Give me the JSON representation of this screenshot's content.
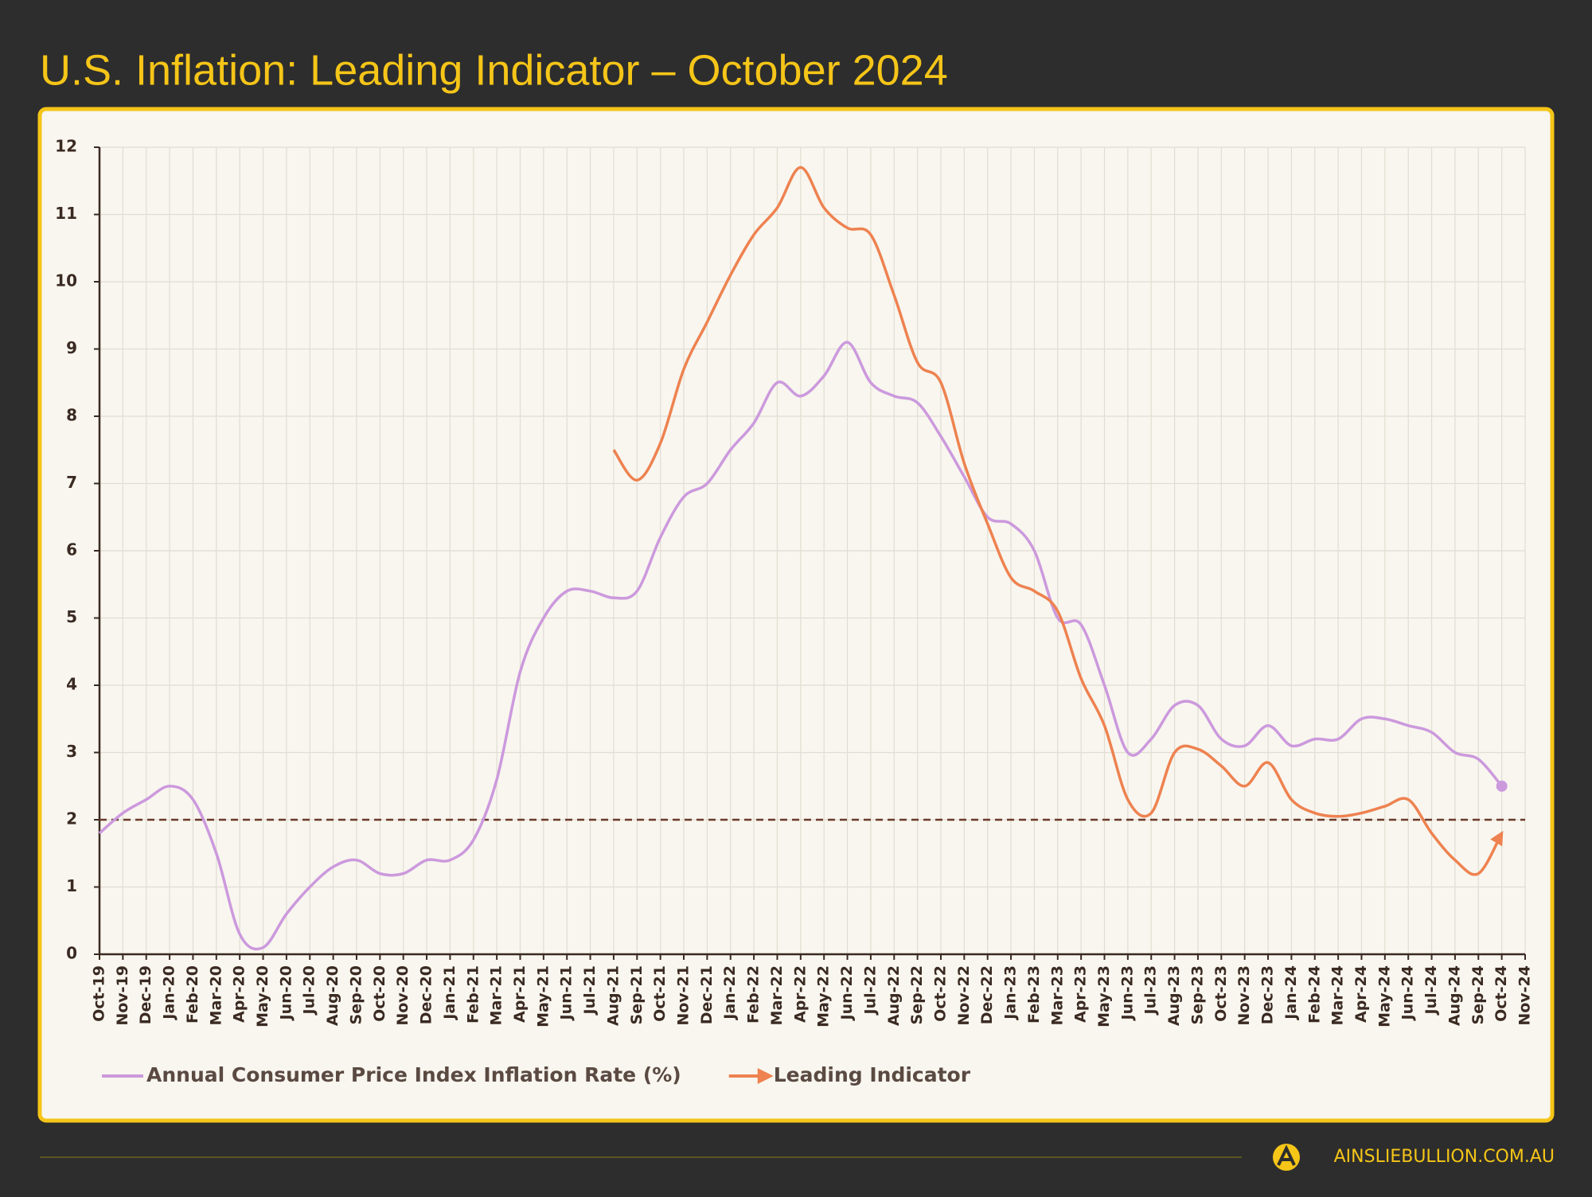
{
  "chart_data": {
    "type": "line",
    "title": "U.S. Inflation: Leading Indicator – October 2024",
    "categories": [
      "Oct-19",
      "Nov-19",
      "Dec-19",
      "Jan-20",
      "Feb-20",
      "Mar-20",
      "Apr-20",
      "May-20",
      "Jun-20",
      "Jul-20",
      "Aug-20",
      "Sep-20",
      "Oct-20",
      "Nov-20",
      "Dec-20",
      "Jan-21",
      "Feb-21",
      "Mar-21",
      "Apr-21",
      "May-21",
      "Jun-21",
      "Jul-21",
      "Aug-21",
      "Sep-21",
      "Oct-21",
      "Nov-21",
      "Dec-21",
      "Jan-22",
      "Feb-22",
      "Mar-22",
      "Apr-22",
      "May-22",
      "Jun-22",
      "Jul-22",
      "Aug-22",
      "Sep-22",
      "Oct-22",
      "Nov-22",
      "Dec-22",
      "Jan-23",
      "Feb-23",
      "Mar-23",
      "Apr-23",
      "May-23",
      "Jun-23",
      "Jul-23",
      "Aug-23",
      "Sep-23",
      "Oct-23",
      "Nov-23",
      "Dec-23",
      "Jan-24",
      "Feb-24",
      "Mar-24",
      "Apr-24",
      "May-24",
      "Jun-24",
      "Jul-24",
      "Aug-24",
      "Sep-24",
      "Oct-24",
      "Nov-24"
    ],
    "series": [
      {
        "name": "Annual Consumer Price Index Inflation Rate (%)",
        "color": "#cc99dd",
        "values": [
          1.8,
          2.1,
          2.3,
          2.5,
          2.3,
          1.5,
          0.3,
          0.1,
          0.6,
          1.0,
          1.3,
          1.4,
          1.2,
          1.2,
          1.4,
          1.4,
          1.7,
          2.6,
          4.2,
          5.0,
          5.4,
          5.4,
          5.3,
          5.4,
          6.2,
          6.8,
          7.0,
          7.5,
          7.9,
          8.5,
          8.3,
          8.6,
          9.1,
          8.5,
          8.3,
          8.2,
          7.7,
          7.1,
          6.5,
          6.4,
          6.0,
          5.0,
          4.9,
          4.0,
          3.0,
          3.2,
          3.7,
          3.7,
          3.2,
          3.1,
          3.4,
          3.1,
          3.2,
          3.2,
          3.5,
          3.5,
          3.4,
          3.3,
          3.0,
          2.9,
          2.5,
          null
        ]
      },
      {
        "name": "Leading Indicator",
        "color": "#ee8250",
        "values": [
          null,
          null,
          null,
          null,
          null,
          null,
          null,
          null,
          null,
          null,
          null,
          null,
          null,
          null,
          null,
          null,
          null,
          null,
          null,
          null,
          null,
          null,
          7.5,
          7.05,
          7.6,
          8.7,
          9.4,
          10.1,
          10.7,
          11.1,
          11.7,
          11.1,
          10.8,
          10.7,
          9.8,
          8.8,
          8.5,
          7.3,
          6.4,
          5.6,
          5.4,
          5.1,
          4.1,
          3.4,
          2.3,
          2.1,
          3.0,
          3.05,
          2.8,
          2.5,
          2.85,
          2.3,
          2.1,
          2.05,
          2.1,
          2.2,
          2.3,
          1.8,
          1.4,
          1.2,
          1.8,
          null
        ]
      }
    ],
    "ylim": [
      0,
      12
    ],
    "yticks": [
      0,
      1,
      2,
      3,
      4,
      5,
      6,
      7,
      8,
      9,
      10,
      11,
      12
    ],
    "reference_line": 2,
    "grid": true
  },
  "footer": {
    "site": "AINSLIEBULLION.COM.AU"
  }
}
